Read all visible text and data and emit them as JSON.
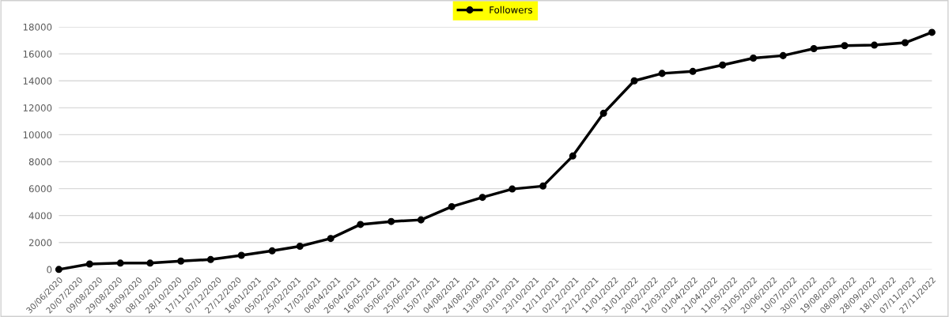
{
  "chart_data": {
    "type": "line",
    "x": [
      "2020-06-30",
      "2020-07-31",
      "2020-08-31",
      "2020-09-30",
      "2020-10-31",
      "2020-11-30",
      "2020-12-31",
      "2021-01-31",
      "2021-02-28",
      "2021-03-31",
      "2021-04-30",
      "2021-05-31",
      "2021-06-30",
      "2021-07-31",
      "2021-08-31",
      "2021-09-30",
      "2021-10-31",
      "2021-11-30",
      "2021-12-31",
      "2022-01-31",
      "2022-02-28",
      "2022-03-31",
      "2022-04-30",
      "2022-05-31",
      "2022-06-30",
      "2022-07-31",
      "2022-08-31",
      "2022-09-30",
      "2022-10-31",
      "2022-11-27"
    ],
    "series": [
      {
        "name": "Followers",
        "color": "#000000",
        "values": [
          0,
          400,
          470,
          470,
          620,
          735,
          1050,
          1380,
          1720,
          2300,
          3340,
          3560,
          3680,
          4660,
          5350,
          5970,
          6190,
          8420,
          11590,
          14000,
          14550,
          14700,
          15170,
          15690,
          15870,
          16390,
          16610,
          16650,
          16830,
          17600
        ]
      }
    ],
    "xlim": [
      "2020-06-30",
      "2022-11-27"
    ],
    "xticks": [
      {
        "value": "2020-06-30",
        "label": "30/06/2020"
      },
      {
        "value": "2020-07-20",
        "label": "20/07/2020"
      },
      {
        "value": "2020-08-09",
        "label": "09/08/2020"
      },
      {
        "value": "2020-08-29",
        "label": "29/08/2020"
      },
      {
        "value": "2020-09-18",
        "label": "18/09/2020"
      },
      {
        "value": "2020-10-08",
        "label": "08/10/2020"
      },
      {
        "value": "2020-10-28",
        "label": "28/10/2020"
      },
      {
        "value": "2020-11-17",
        "label": "17/11/2020"
      },
      {
        "value": "2020-12-07",
        "label": "07/12/2020"
      },
      {
        "value": "2020-12-27",
        "label": "27/12/2020"
      },
      {
        "value": "2021-01-16",
        "label": "16/01/2021"
      },
      {
        "value": "2021-02-05",
        "label": "05/02/2021"
      },
      {
        "value": "2021-02-25",
        "label": "25/02/2021"
      },
      {
        "value": "2021-03-17",
        "label": "17/03/2021"
      },
      {
        "value": "2021-04-06",
        "label": "06/04/2021"
      },
      {
        "value": "2021-04-26",
        "label": "26/04/2021"
      },
      {
        "value": "2021-05-16",
        "label": "16/05/2021"
      },
      {
        "value": "2021-06-05",
        "label": "05/06/2021"
      },
      {
        "value": "2021-06-25",
        "label": "25/06/2021"
      },
      {
        "value": "2021-07-15",
        "label": "15/07/2021"
      },
      {
        "value": "2021-08-04",
        "label": "04/08/2021"
      },
      {
        "value": "2021-08-24",
        "label": "24/08/2021"
      },
      {
        "value": "2021-09-13",
        "label": "13/09/2021"
      },
      {
        "value": "2021-10-03",
        "label": "03/10/2021"
      },
      {
        "value": "2021-10-23",
        "label": "23/10/2021"
      },
      {
        "value": "2021-11-12",
        "label": "12/11/2021"
      },
      {
        "value": "2021-12-02",
        "label": "02/12/2021"
      },
      {
        "value": "2021-12-22",
        "label": "22/12/2021"
      },
      {
        "value": "2022-01-11",
        "label": "11/01/2022"
      },
      {
        "value": "2022-01-31",
        "label": "31/01/2022"
      },
      {
        "value": "2022-02-20",
        "label": "20/02/2022"
      },
      {
        "value": "2022-03-12",
        "label": "12/03/2022"
      },
      {
        "value": "2022-04-01",
        "label": "01/04/2022"
      },
      {
        "value": "2022-04-21",
        "label": "21/04/2022"
      },
      {
        "value": "2022-05-11",
        "label": "11/05/2022"
      },
      {
        "value": "2022-05-31",
        "label": "31/05/2022"
      },
      {
        "value": "2022-06-20",
        "label": "20/06/2022"
      },
      {
        "value": "2022-07-10",
        "label": "10/07/2022"
      },
      {
        "value": "2022-07-30",
        "label": "30/07/2022"
      },
      {
        "value": "2022-08-19",
        "label": "19/08/2022"
      },
      {
        "value": "2022-09-08",
        "label": "08/09/2022"
      },
      {
        "value": "2022-09-28",
        "label": "28/09/2022"
      },
      {
        "value": "2022-10-18",
        "label": "18/10/2022"
      },
      {
        "value": "2022-11-07",
        "label": "07/11/2022"
      },
      {
        "value": "2022-11-27",
        "label": "27/11/2022"
      }
    ],
    "ylim": [
      0,
      18000
    ],
    "yticks": [
      0,
      2000,
      4000,
      6000,
      8000,
      10000,
      12000,
      14000,
      16000,
      18000
    ],
    "grid": "y",
    "legend": "top",
    "marker": "circle",
    "line_style": "solid"
  }
}
